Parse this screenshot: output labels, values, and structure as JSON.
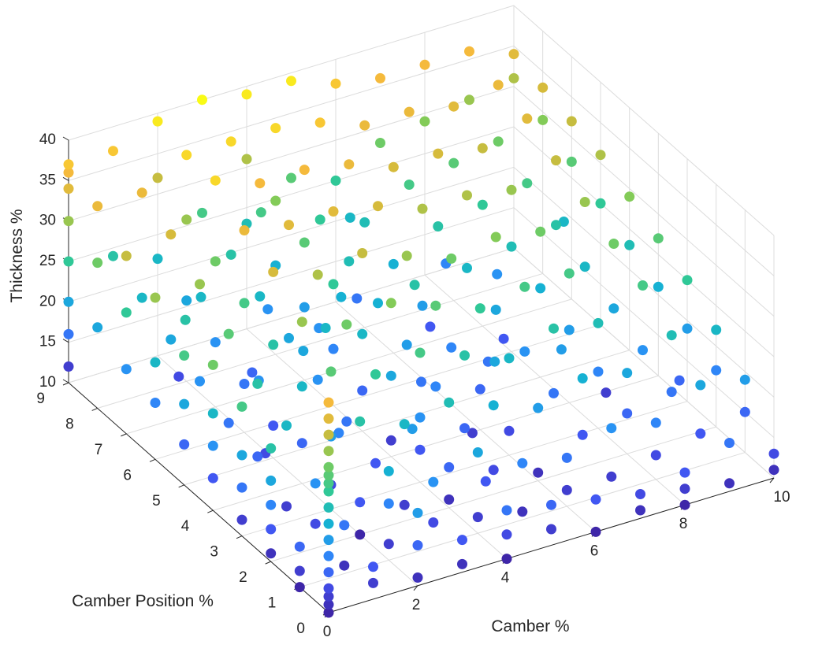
{
  "chart_data": {
    "type": "scatter",
    "title": "",
    "xlabel": "Camber %",
    "ylabel": "Camber Position %",
    "zlabel": "Thickness %",
    "xlim": [
      0,
      10
    ],
    "ylim": [
      0,
      9
    ],
    "zlim": [
      10,
      40
    ],
    "xticks": [
      0,
      2,
      4,
      6,
      8,
      10
    ],
    "yticks": [
      0,
      1,
      2,
      3,
      4,
      5,
      6,
      7,
      8,
      9
    ],
    "zticks": [
      10,
      15,
      20,
      25,
      30,
      35,
      40
    ],
    "grid": true,
    "colormap": [
      "#3e26a8",
      "#4353f2",
      "#2c8ef8",
      "#14b3d0",
      "#30c897",
      "#7dcc5a",
      "#d1bb3c",
      "#f8ba3c",
      "#f9fb15"
    ],
    "color_by": "z",
    "points": [
      [
        0,
        0,
        10
      ],
      [
        0,
        0,
        11
      ],
      [
        0,
        0,
        12
      ],
      [
        0,
        0,
        13
      ],
      [
        0,
        0,
        15
      ],
      [
        0,
        0,
        17
      ],
      [
        0,
        0,
        19
      ],
      [
        0,
        0,
        21
      ],
      [
        0,
        0,
        23
      ],
      [
        0,
        0,
        25
      ],
      [
        0,
        0,
        26
      ],
      [
        0,
        0,
        27
      ],
      [
        0,
        0,
        28
      ],
      [
        0,
        0,
        30
      ],
      [
        0,
        0,
        32
      ],
      [
        0,
        0,
        34
      ],
      [
        0,
        0,
        36
      ],
      [
        0,
        1,
        10
      ],
      [
        0,
        1,
        12
      ],
      [
        0,
        1,
        15
      ],
      [
        0,
        2,
        11
      ],
      [
        0,
        2,
        14
      ],
      [
        0,
        2,
        17
      ],
      [
        0,
        2,
        20
      ],
      [
        0,
        2,
        24
      ],
      [
        0,
        3,
        12
      ],
      [
        0,
        3,
        16
      ],
      [
        0,
        3,
        20
      ],
      [
        0,
        3,
        26
      ],
      [
        0,
        4,
        14
      ],
      [
        0,
        4,
        18
      ],
      [
        0,
        4,
        22
      ],
      [
        0,
        4,
        28
      ],
      [
        0,
        5,
        15
      ],
      [
        0,
        5,
        20
      ],
      [
        0,
        5,
        26
      ],
      [
        0,
        6,
        17
      ],
      [
        0,
        6,
        22
      ],
      [
        0,
        6,
        30
      ],
      [
        0,
        7,
        18
      ],
      [
        0,
        7,
        25
      ],
      [
        0,
        7,
        32
      ],
      [
        0,
        8,
        20
      ],
      [
        0,
        8,
        28
      ],
      [
        0,
        8,
        35
      ],
      [
        0,
        9,
        12
      ],
      [
        0,
        9,
        16
      ],
      [
        0,
        9,
        20
      ],
      [
        0,
        9,
        25
      ],
      [
        0,
        9,
        30
      ],
      [
        0,
        9,
        34
      ],
      [
        0,
        9,
        36
      ],
      [
        0,
        9,
        37
      ],
      [
        1,
        0,
        12
      ],
      [
        1,
        0,
        14
      ],
      [
        1,
        1,
        11
      ],
      [
        1,
        1,
        16
      ],
      [
        1,
        2,
        13
      ],
      [
        1,
        2,
        18
      ],
      [
        1,
        3,
        12
      ],
      [
        1,
        3,
        22
      ],
      [
        1,
        4,
        15
      ],
      [
        1,
        4,
        24
      ],
      [
        1,
        5,
        16
      ],
      [
        1,
        5,
        27
      ],
      [
        1,
        6,
        18
      ],
      [
        1,
        6,
        30
      ],
      [
        1,
        7,
        20
      ],
      [
        1,
        7,
        33
      ],
      [
        1,
        8,
        22
      ],
      [
        1,
        8,
        35
      ],
      [
        1,
        9,
        24
      ],
      [
        1,
        9,
        37
      ],
      [
        2,
        0,
        11
      ],
      [
        2,
        0,
        15
      ],
      [
        2,
        0,
        19
      ],
      [
        2,
        1,
        12
      ],
      [
        2,
        1,
        17
      ],
      [
        2,
        1,
        21
      ],
      [
        2,
        2,
        10
      ],
      [
        2,
        2,
        14
      ],
      [
        2,
        2,
        24
      ],
      [
        2,
        3,
        13
      ],
      [
        2,
        3,
        19
      ],
      [
        2,
        3,
        27
      ],
      [
        2,
        4,
        15
      ],
      [
        2,
        4,
        22
      ],
      [
        2,
        4,
        30
      ],
      [
        2,
        5,
        14
      ],
      [
        2,
        5,
        24
      ],
      [
        2,
        5,
        33
      ],
      [
        2,
        6,
        16
      ],
      [
        2,
        6,
        26
      ],
      [
        2,
        6,
        35
      ],
      [
        2,
        7,
        18
      ],
      [
        2,
        7,
        28
      ],
      [
        2,
        7,
        38
      ],
      [
        2,
        8,
        20
      ],
      [
        2,
        8,
        30
      ],
      [
        2,
        8,
        38
      ],
      [
        2,
        9,
        22
      ],
      [
        2,
        9,
        32
      ],
      [
        2,
        9,
        39
      ],
      [
        3,
        0,
        11
      ],
      [
        3,
        0,
        14
      ],
      [
        3,
        1,
        13
      ],
      [
        3,
        1,
        18
      ],
      [
        3,
        2,
        12
      ],
      [
        3,
        2,
        22
      ],
      [
        3,
        3,
        14
      ],
      [
        3,
        3,
        25
      ],
      [
        3,
        4,
        16
      ],
      [
        3,
        4,
        28
      ],
      [
        3,
        5,
        18
      ],
      [
        3,
        5,
        31
      ],
      [
        3,
        6,
        20
      ],
      [
        3,
        6,
        34
      ],
      [
        3,
        7,
        22
      ],
      [
        3,
        7,
        36
      ],
      [
        3,
        8,
        24
      ],
      [
        3,
        8,
        38
      ],
      [
        3,
        9,
        26
      ],
      [
        3,
        9,
        40
      ],
      [
        4,
        0,
        10
      ],
      [
        4,
        0,
        13
      ],
      [
        4,
        0,
        16
      ],
      [
        4,
        1,
        12
      ],
      [
        4,
        1,
        20
      ],
      [
        4,
        2,
        11
      ],
      [
        4,
        2,
        15
      ],
      [
        4,
        2,
        23
      ],
      [
        4,
        3,
        14
      ],
      [
        4,
        3,
        18
      ],
      [
        4,
        3,
        26
      ],
      [
        4,
        4,
        12
      ],
      [
        4,
        4,
        20
      ],
      [
        4,
        4,
        29
      ],
      [
        4,
        5,
        15
      ],
      [
        4,
        5,
        22
      ],
      [
        4,
        5,
        32
      ],
      [
        4,
        6,
        17
      ],
      [
        4,
        6,
        25
      ],
      [
        4,
        6,
        34
      ],
      [
        4,
        7,
        19
      ],
      [
        4,
        7,
        27
      ],
      [
        4,
        7,
        36
      ],
      [
        4,
        8,
        21
      ],
      [
        4,
        8,
        29
      ],
      [
        4,
        8,
        38
      ],
      [
        4,
        9,
        23
      ],
      [
        4,
        9,
        31
      ],
      [
        4,
        9,
        39
      ],
      [
        5,
        0,
        12
      ],
      [
        5,
        0,
        15
      ],
      [
        5,
        1,
        11
      ],
      [
        5,
        1,
        17
      ],
      [
        5,
        2,
        13
      ],
      [
        5,
        2,
        21
      ],
      [
        5,
        3,
        15
      ],
      [
        5,
        3,
        24
      ],
      [
        5,
        4,
        17
      ],
      [
        5,
        4,
        27
      ],
      [
        5,
        5,
        19
      ],
      [
        5,
        5,
        30
      ],
      [
        5,
        6,
        21
      ],
      [
        5,
        6,
        33
      ],
      [
        5,
        7,
        23
      ],
      [
        5,
        7,
        35
      ],
      [
        5,
        8,
        25
      ],
      [
        5,
        8,
        37
      ],
      [
        5,
        9,
        27
      ],
      [
        5,
        9,
        39
      ],
      [
        6,
        0,
        10
      ],
      [
        6,
        0,
        14
      ],
      [
        6,
        1,
        12
      ],
      [
        6,
        1,
        16
      ],
      [
        6,
        2,
        11
      ],
      [
        6,
        2,
        19
      ],
      [
        6,
        3,
        13
      ],
      [
        6,
        3,
        22
      ],
      [
        6,
        4,
        15
      ],
      [
        6,
        4,
        25
      ],
      [
        6,
        5,
        17
      ],
      [
        6,
        5,
        28
      ],
      [
        6,
        6,
        19
      ],
      [
        6,
        6,
        31
      ],
      [
        6,
        7,
        21
      ],
      [
        6,
        7,
        33
      ],
      [
        6,
        8,
        23
      ],
      [
        6,
        8,
        35
      ],
      [
        6,
        9,
        25
      ],
      [
        6,
        9,
        37
      ],
      [
        7,
        0,
        11
      ],
      [
        7,
        0,
        13
      ],
      [
        7,
        1,
        12
      ],
      [
        7,
        1,
        18
      ],
      [
        7,
        2,
        14
      ],
      [
        7,
        2,
        21
      ],
      [
        7,
        3,
        16
      ],
      [
        7,
        3,
        24
      ],
      [
        7,
        4,
        18
      ],
      [
        7,
        4,
        26
      ],
      [
        7,
        5,
        20
      ],
      [
        7,
        5,
        29
      ],
      [
        7,
        6,
        22
      ],
      [
        7,
        6,
        31
      ],
      [
        7,
        7,
        24
      ],
      [
        7,
        7,
        33
      ],
      [
        7,
        8,
        26
      ],
      [
        7,
        8,
        35
      ],
      [
        7,
        9,
        28
      ],
      [
        7,
        9,
        36
      ],
      [
        8,
        0,
        10
      ],
      [
        8,
        0,
        12
      ],
      [
        8,
        0,
        14
      ],
      [
        8,
        1,
        13
      ],
      [
        8,
        1,
        17
      ],
      [
        8,
        2,
        15
      ],
      [
        8,
        2,
        20
      ],
      [
        8,
        3,
        17
      ],
      [
        8,
        3,
        23
      ],
      [
        8,
        4,
        19
      ],
      [
        8,
        4,
        26
      ],
      [
        8,
        5,
        21
      ],
      [
        8,
        5,
        28
      ],
      [
        8,
        6,
        23
      ],
      [
        8,
        6,
        30
      ],
      [
        8,
        7,
        25
      ],
      [
        8,
        7,
        32
      ],
      [
        8,
        8,
        27
      ],
      [
        8,
        8,
        34
      ],
      [
        8,
        9,
        29
      ],
      [
        8,
        9,
        36
      ],
      [
        9,
        0,
        11
      ],
      [
        9,
        0,
        16
      ],
      [
        9,
        1,
        14
      ],
      [
        9,
        1,
        20
      ],
      [
        9,
        2,
        16
      ],
      [
        9,
        2,
        23
      ],
      [
        9,
        3,
        18
      ],
      [
        9,
        3,
        26
      ],
      [
        9,
        4,
        20
      ],
      [
        9,
        4,
        28
      ],
      [
        9,
        5,
        22
      ],
      [
        9,
        5,
        30
      ],
      [
        9,
        6,
        24
      ],
      [
        9,
        6,
        32
      ],
      [
        9,
        7,
        26
      ],
      [
        9,
        7,
        34
      ],
      [
        9,
        8,
        28
      ],
      [
        9,
        8,
        35
      ],
      [
        9,
        9,
        30
      ],
      [
        9,
        9,
        36
      ],
      [
        10,
        0,
        11
      ],
      [
        10,
        0,
        13
      ],
      [
        10,
        1,
        15
      ],
      [
        10,
        1,
        19
      ],
      [
        10,
        2,
        17
      ],
      [
        10,
        2,
        22
      ],
      [
        10,
        3,
        19
      ],
      [
        10,
        3,
        25
      ],
      [
        10,
        4,
        21
      ],
      [
        10,
        4,
        27
      ],
      [
        10,
        5,
        23
      ],
      [
        10,
        5,
        29
      ],
      [
        10,
        6,
        25
      ],
      [
        10,
        6,
        31
      ],
      [
        10,
        7,
        27
      ],
      [
        10,
        7,
        32
      ],
      [
        10,
        8,
        29
      ],
      [
        10,
        8,
        33
      ],
      [
        10,
        9,
        31
      ],
      [
        10,
        9,
        34
      ],
      [
        1.5,
        4.5,
        13
      ],
      [
        2.5,
        3.5,
        17
      ],
      [
        3.5,
        2.5,
        19
      ],
      [
        4.5,
        1.5,
        14
      ],
      [
        5.5,
        3.5,
        12
      ],
      [
        6.5,
        4.5,
        16
      ],
      [
        7.5,
        5.5,
        14
      ],
      [
        8.5,
        3.5,
        12
      ],
      [
        2.5,
        6.5,
        15
      ],
      [
        3.5,
        7.5,
        18
      ],
      [
        4.5,
        6.5,
        21
      ],
      [
        5.5,
        7.5,
        16
      ],
      [
        6.5,
        6.5,
        14
      ],
      [
        7.5,
        7.5,
        17
      ],
      [
        1.5,
        7.5,
        13
      ],
      [
        3.5,
        5.5,
        22
      ],
      [
        5.5,
        5.5,
        24
      ],
      [
        7.5,
        3.5,
        19
      ],
      [
        9.5,
        6.5,
        22
      ],
      [
        9.5,
        2.5,
        15
      ],
      [
        3,
        5.5,
        20
      ],
      [
        4,
        6.5,
        18
      ],
      [
        5,
        4.5,
        16
      ],
      [
        6,
        3.5,
        20
      ],
      [
        2,
        7.5,
        22
      ],
      [
        8,
        6.5,
        18
      ],
      [
        6,
        8.5,
        22
      ],
      [
        4,
        8.5,
        26
      ],
      [
        2,
        5.5,
        18
      ],
      [
        1,
        6.5,
        24
      ]
    ]
  }
}
